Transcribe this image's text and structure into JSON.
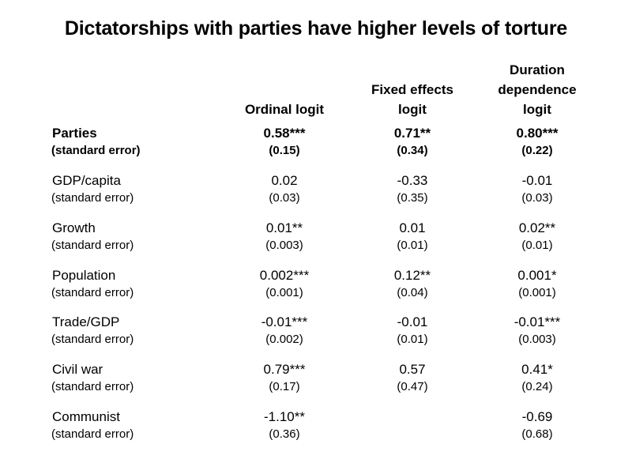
{
  "title": "Dictatorships with parties have higher levels of torture",
  "columns": [
    {
      "lines": [
        "Ordinal logit"
      ]
    },
    {
      "lines": [
        "Fixed effects",
        "logit"
      ]
    },
    {
      "lines": [
        "Duration",
        "dependence",
        "logit"
      ]
    }
  ],
  "rows": [
    {
      "label": "Parties",
      "se_label": "(standard error)",
      "bold": true,
      "values": [
        "0.58***",
        "0.71**",
        "0.80***"
      ],
      "ses": [
        "(0.15)",
        "(0.34)",
        "(0.22)"
      ]
    },
    {
      "label": "GDP/capita",
      "se_label": "(standard error)",
      "bold": false,
      "values": [
        "0.02",
        "-0.33",
        "-0.01"
      ],
      "ses": [
        "(0.03)",
        "(0.35)",
        "(0.03)"
      ]
    },
    {
      "label": "Growth",
      "se_label": "(standard error)",
      "bold": false,
      "values": [
        "0.01**",
        "0.01",
        "0.02**"
      ],
      "ses": [
        "(0.003)",
        "(0.01)",
        "(0.01)"
      ]
    },
    {
      "label": "Population",
      "se_label": "(standard error)",
      "bold": false,
      "values": [
        "0.002***",
        "0.12**",
        "0.001*"
      ],
      "ses": [
        "(0.001)",
        "(0.04)",
        "(0.001)"
      ]
    },
    {
      "label": "Trade/GDP",
      "se_label": "(standard error)",
      "bold": false,
      "values": [
        "-0.01***",
        "-0.01",
        "-0.01***"
      ],
      "ses": [
        "(0.002)",
        "(0.01)",
        "(0.003)"
      ]
    },
    {
      "label": "Civil war",
      "se_label": "(standard error)",
      "bold": false,
      "values": [
        "0.79***",
        "0.57",
        "0.41*"
      ],
      "ses": [
        "(0.17)",
        "(0.47)",
        "(0.24)"
      ]
    },
    {
      "label": "Communist",
      "se_label": "(standard error)",
      "bold": false,
      "values": [
        "-1.10**",
        "",
        "-0.69"
      ],
      "ses": [
        "(0.36)",
        "",
        "(0.68)"
      ]
    }
  ]
}
